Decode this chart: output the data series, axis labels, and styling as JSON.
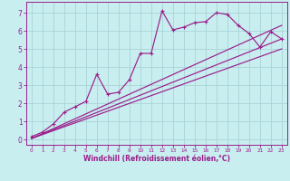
{
  "xlabel": "Windchill (Refroidissement éolien,°C)",
  "background_color": "#c8eef0",
  "line_color": "#9b1d8a",
  "grid_color": "#a8d4d8",
  "xlim": [
    -0.5,
    23.5
  ],
  "ylim": [
    -0.3,
    7.6
  ],
  "xticks": [
    0,
    1,
    2,
    3,
    4,
    5,
    6,
    7,
    8,
    9,
    10,
    11,
    12,
    13,
    14,
    15,
    16,
    17,
    18,
    19,
    20,
    21,
    22,
    23
  ],
  "yticks": [
    0,
    1,
    2,
    3,
    4,
    5,
    6,
    7
  ],
  "series1_x": [
    0,
    1,
    2,
    3,
    4,
    5,
    6,
    7,
    8,
    9,
    10,
    11,
    12,
    13,
    14,
    15,
    16,
    17,
    18,
    19,
    20,
    21,
    22,
    23
  ],
  "series1_y": [
    0.15,
    0.4,
    0.85,
    1.5,
    1.8,
    2.1,
    3.6,
    2.5,
    2.6,
    3.3,
    4.75,
    4.75,
    7.1,
    6.05,
    6.2,
    6.45,
    6.5,
    7.0,
    6.9,
    6.3,
    5.85,
    5.1,
    5.95,
    5.55
  ],
  "line1_x": [
    0,
    23
  ],
  "line1_y": [
    0.05,
    6.3
  ],
  "line2_x": [
    0,
    23
  ],
  "line2_y": [
    0.05,
    5.55
  ],
  "line3_x": [
    0,
    23
  ],
  "line3_y": [
    0.05,
    5.0
  ]
}
